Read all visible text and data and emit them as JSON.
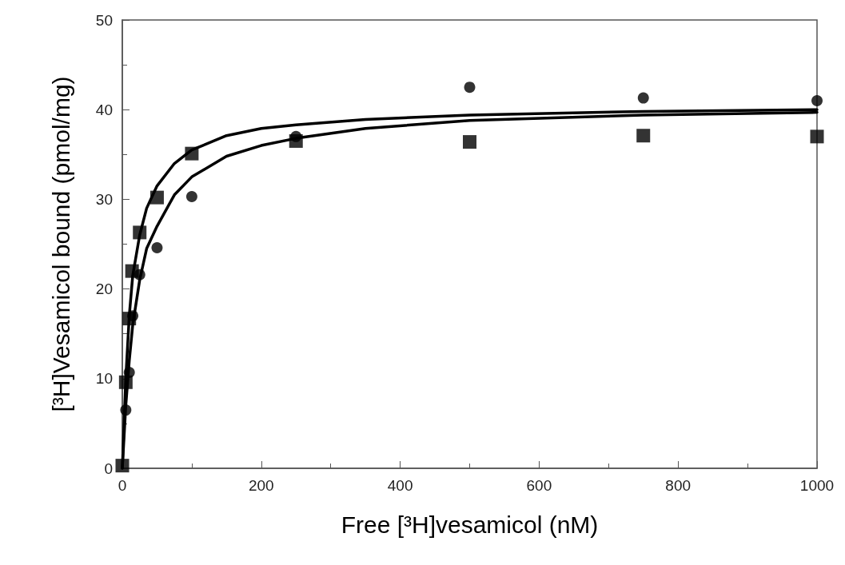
{
  "chart_data": {
    "type": "scatter",
    "xlabel": "Free [³H]vesamicol (nM)",
    "ylabel": "[³H]Vesamicol bound (pmol/mg)",
    "xlim": [
      0,
      1000
    ],
    "xticks": [
      0,
      200,
      400,
      600,
      800,
      1000
    ],
    "ylim": [
      0,
      50
    ],
    "yticks": [
      0,
      10,
      20,
      30,
      40,
      50
    ],
    "grid": false,
    "series": [
      {
        "marker": "square",
        "color": "#000000",
        "x": [
          0,
          5,
          10,
          14,
          25,
          50,
          100,
          250,
          500,
          750,
          1000
        ],
        "values": [
          0.3,
          9.6,
          16.7,
          22,
          26.3,
          30.2,
          35.1,
          36.5,
          36.4,
          37.1,
          37.0
        ]
      },
      {
        "marker": "circle",
        "color": "#000000",
        "x": [
          5,
          10,
          15,
          25,
          50,
          100,
          250,
          500,
          750,
          1000
        ],
        "values": [
          6.5,
          10.7,
          17,
          21.6,
          24.6,
          30.3,
          37.0,
          42.5,
          41.3,
          41.0
        ]
      },
      {
        "type": "line",
        "marker": "none",
        "color": "#000000",
        "x": [
          0,
          5,
          10,
          15,
          25,
          35,
          50,
          75,
          100,
          150,
          200,
          250,
          350,
          500,
          750,
          1000
        ],
        "values": [
          0,
          10,
          17,
          21.5,
          26,
          29,
          31.5,
          34,
          35.5,
          37.1,
          37.9,
          38.3,
          38.9,
          39.4,
          39.8,
          40.0
        ]
      },
      {
        "type": "line",
        "marker": "none",
        "color": "#000000",
        "x": [
          0,
          5,
          10,
          15,
          25,
          35,
          50,
          75,
          100,
          150,
          200,
          250,
          350,
          500,
          750,
          1000
        ],
        "values": [
          0,
          7,
          12,
          16,
          21,
          24.5,
          27,
          30.5,
          32.5,
          34.8,
          36,
          36.8,
          37.9,
          38.8,
          39.4,
          39.7
        ]
      }
    ]
  }
}
